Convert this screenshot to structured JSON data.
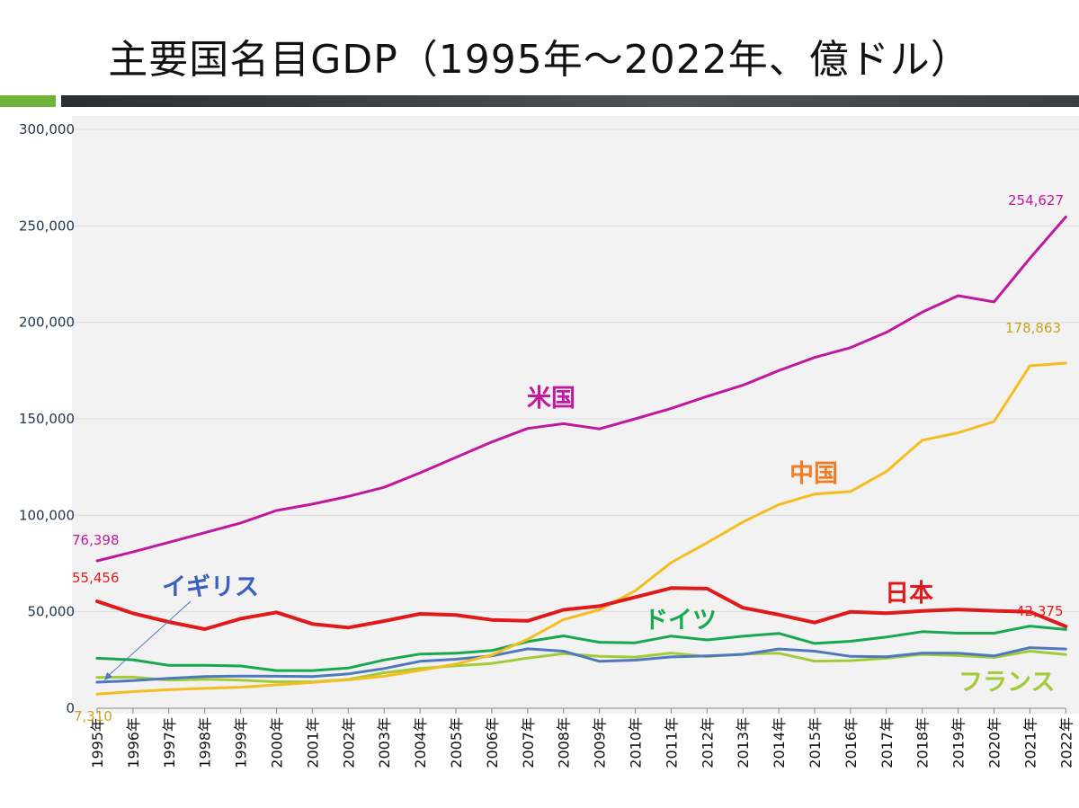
{
  "title": "主要国名目GDP（1995年～2022年、億ドル）",
  "chart_data": {
    "type": "line",
    "title": "主要国名目GDP（1995年～2022年、億ドル）",
    "xlabel": "",
    "ylabel": "",
    "ylim": [
      0,
      300000
    ],
    "yticks": [
      0,
      50000,
      100000,
      150000,
      200000,
      250000,
      300000
    ],
    "ytick_labels": [
      "0",
      "50,000",
      "100,000",
      "150,000",
      "200,000",
      "250,000",
      "300,000"
    ],
    "grid": "horizontal",
    "categories": [
      "1995年",
      "1996年",
      "1997年",
      "1998年",
      "1999年",
      "2000年",
      "2001年",
      "2002年",
      "2003年",
      "2004年",
      "2005年",
      "2006年",
      "2007年",
      "2008年",
      "2009年",
      "2010年",
      "2011年",
      "2012年",
      "2013年",
      "2014年",
      "2015年",
      "2016年",
      "2017年",
      "2018年",
      "2019年",
      "2020年",
      "2021年",
      "2022年"
    ],
    "series": [
      {
        "name": "米国",
        "color": "#c0199f",
        "width": 3,
        "values": [
          76398,
          81000,
          86000,
          91000,
          96000,
          102500,
          105800,
          109800,
          114500,
          122000,
          130000,
          138000,
          145000,
          147500,
          144800,
          150000,
          155400,
          161600,
          167400,
          175000,
          181800,
          186900,
          194800,
          205300,
          213800,
          210600,
          233200,
          254627
        ]
      },
      {
        "name": "中国",
        "color": "#f5bd1f",
        "width": 3,
        "values": [
          7310,
          8600,
          9600,
          10300,
          10900,
          12100,
          13400,
          14700,
          16600,
          19600,
          22900,
          27600,
          35700,
          46000,
          51000,
          60900,
          75500,
          85700,
          96500,
          105500,
          111000,
          112300,
          122700,
          138900,
          142800,
          148600,
          177500,
          178863
        ]
      },
      {
        "name": "日本",
        "color": "#e01a1a",
        "width": 4,
        "values": [
          55456,
          49200,
          44700,
          41000,
          46400,
          49700,
          43700,
          41800,
          45200,
          48900,
          48300,
          45800,
          45300,
          51000,
          52900,
          57600,
          62300,
          62000,
          52100,
          48500,
          44400,
          50000,
          49300,
          50400,
          51200,
          50500,
          50000,
          42375
        ]
      },
      {
        "name": "ドイツ",
        "color": "#18a84d",
        "width": 3,
        "values": [
          25900,
          25100,
          22200,
          22200,
          21900,
          19500,
          19500,
          20800,
          25000,
          28100,
          28500,
          29900,
          34500,
          37500,
          34200,
          33900,
          37400,
          35400,
          37300,
          38800,
          33600,
          34700,
          36900,
          39700,
          38900,
          38900,
          42600,
          40800
        ]
      },
      {
        "name": "イギリス",
        "color": "#4f78be",
        "width": 3,
        "values": [
          13500,
          14300,
          15500,
          16400,
          16700,
          16600,
          16400,
          17800,
          20600,
          24300,
          25400,
          27100,
          30800,
          29600,
          24300,
          24900,
          26600,
          27100,
          27900,
          30700,
          29600,
          26900,
          26700,
          28600,
          28500,
          27100,
          31400,
          30700
        ]
      },
      {
        "name": "フランス",
        "color": "#a3cb38",
        "width": 3,
        "values": [
          16000,
          16100,
          14600,
          15000,
          14600,
          13700,
          13700,
          14900,
          18400,
          20600,
          22000,
          23200,
          26000,
          28300,
          26900,
          26500,
          28600,
          26800,
          28100,
          28500,
          24400,
          24700,
          25900,
          27900,
          27300,
          26300,
          29600,
          27800
        ]
      }
    ],
    "value_labels": [
      "76,398",
      "254,627",
      "55,456",
      "42,375",
      "7,310",
      "178,863"
    ]
  }
}
